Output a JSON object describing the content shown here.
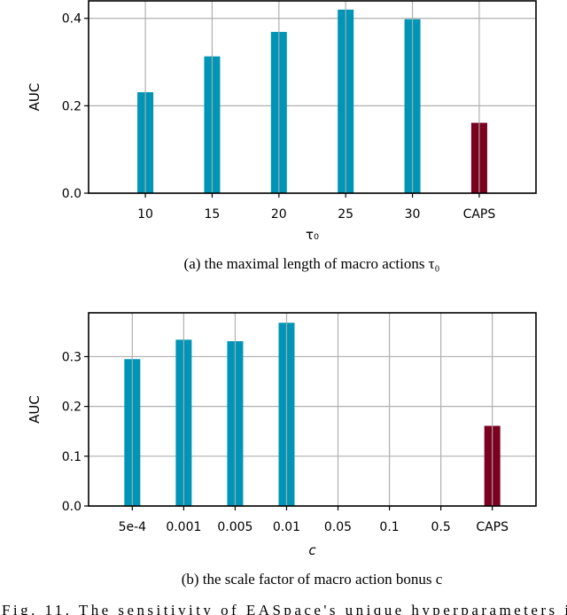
{
  "colors": {
    "bar": "#0095b6",
    "baseline": "#7b0020",
    "grid": "#b0b0b0"
  },
  "figure_caption": "Fig. 11.   The sensitivity of EASpace's unique hyperparameters i",
  "chart_data": [
    {
      "type": "bar",
      "caption": "(a) the maximal length of macro actions τ₀",
      "xlabel": "τ₀",
      "ylabel": "AUC",
      "categories": [
        "10",
        "15",
        "20",
        "25",
        "30",
        "CAPS"
      ],
      "values": [
        0.231,
        0.313,
        0.369,
        0.42,
        0.398,
        0.161
      ],
      "highlight": [
        false,
        false,
        false,
        false,
        false,
        true
      ],
      "yticks": [
        "0.0",
        "0.2",
        "0.4"
      ],
      "ytick_values": [
        0.0,
        0.2,
        0.4
      ],
      "ylim": [
        0,
        0.44
      ],
      "grid": true
    },
    {
      "type": "bar",
      "caption": "(b) the scale factor of macro action bonus c",
      "xlabel": "c",
      "ylabel": "AUC",
      "categories": [
        "5e-4",
        "0.001",
        "0.005",
        "0.01",
        "0.05",
        "0.1",
        "0.5",
        "CAPS"
      ],
      "values": [
        0.295,
        0.334,
        0.331,
        0.368,
        null,
        null,
        null,
        0.161
      ],
      "highlight": [
        false,
        false,
        false,
        false,
        false,
        false,
        false,
        true
      ],
      "yticks": [
        "0.0",
        "0.1",
        "0.2",
        "0.3"
      ],
      "ytick_values": [
        0.0,
        0.1,
        0.2,
        0.3
      ],
      "ylim": [
        0,
        0.388
      ],
      "grid": true
    }
  ]
}
